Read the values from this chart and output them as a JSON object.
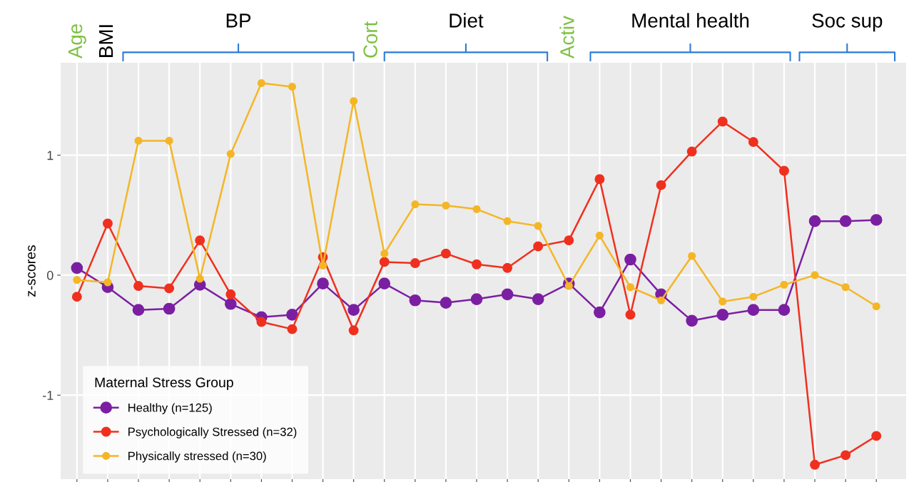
{
  "chart_data": {
    "type": "line",
    "ylabel": "z-scores",
    "legend_title": "Maternal Stress Group",
    "annotations": [
      "Age",
      "BMI",
      "BP",
      "Cort",
      "Diet",
      "Activ",
      "Mental health",
      "Soc sup"
    ],
    "categories": [
      null,
      null,
      null,
      null,
      null,
      null,
      null,
      null,
      null,
      null,
      null,
      null,
      null,
      null,
      null,
      null,
      null,
      null,
      null,
      null,
      null,
      null,
      null,
      null,
      null,
      null,
      null
    ],
    "series": [
      {
        "name": "Healthy (n=125)",
        "color": "#7b1fa2",
        "values": [
          0.06,
          -0.1,
          -0.29,
          -0.28,
          -0.08,
          -0.24,
          -0.35,
          -0.33,
          -0.07,
          -0.29,
          -0.07,
          -0.21,
          -0.23,
          -0.2,
          -0.16,
          -0.2,
          -0.07,
          -0.31,
          0.13,
          -0.16,
          -0.38,
          -0.33,
          -0.29,
          -0.29,
          0.45,
          0.45,
          0.46
        ]
      },
      {
        "name": "Psychologically Stressed (n=32)",
        "color": "#f0301e",
        "values": [
          -0.18,
          0.43,
          -0.09,
          -0.11,
          0.29,
          -0.16,
          -0.39,
          -0.45,
          0.15,
          -0.46,
          0.11,
          0.1,
          0.18,
          0.09,
          0.06,
          0.24,
          0.29,
          0.8,
          -0.33,
          0.75,
          1.03,
          1.28,
          1.11,
          0.87,
          -1.58,
          -1.5,
          -1.34
        ]
      },
      {
        "name": "Physically stressed (n=30)",
        "color": "#f4b626",
        "values": [
          -0.04,
          -0.06,
          1.12,
          1.12,
          -0.03,
          1.01,
          1.6,
          1.57,
          0.08,
          1.45,
          0.18,
          0.59,
          0.58,
          0.55,
          0.45,
          0.41,
          -0.09,
          0.33,
          -0.1,
          -0.21,
          0.16,
          -0.22,
          -0.18,
          -0.08,
          0.0,
          -0.1,
          -0.26
        ]
      }
    ],
    "ylim": [
      -1.7,
      1.77
    ],
    "yticks": [
      -1,
      0,
      1
    ],
    "grid": true,
    "legend": "bottom left",
    "marker": "circle",
    "line_style": "solid"
  }
}
